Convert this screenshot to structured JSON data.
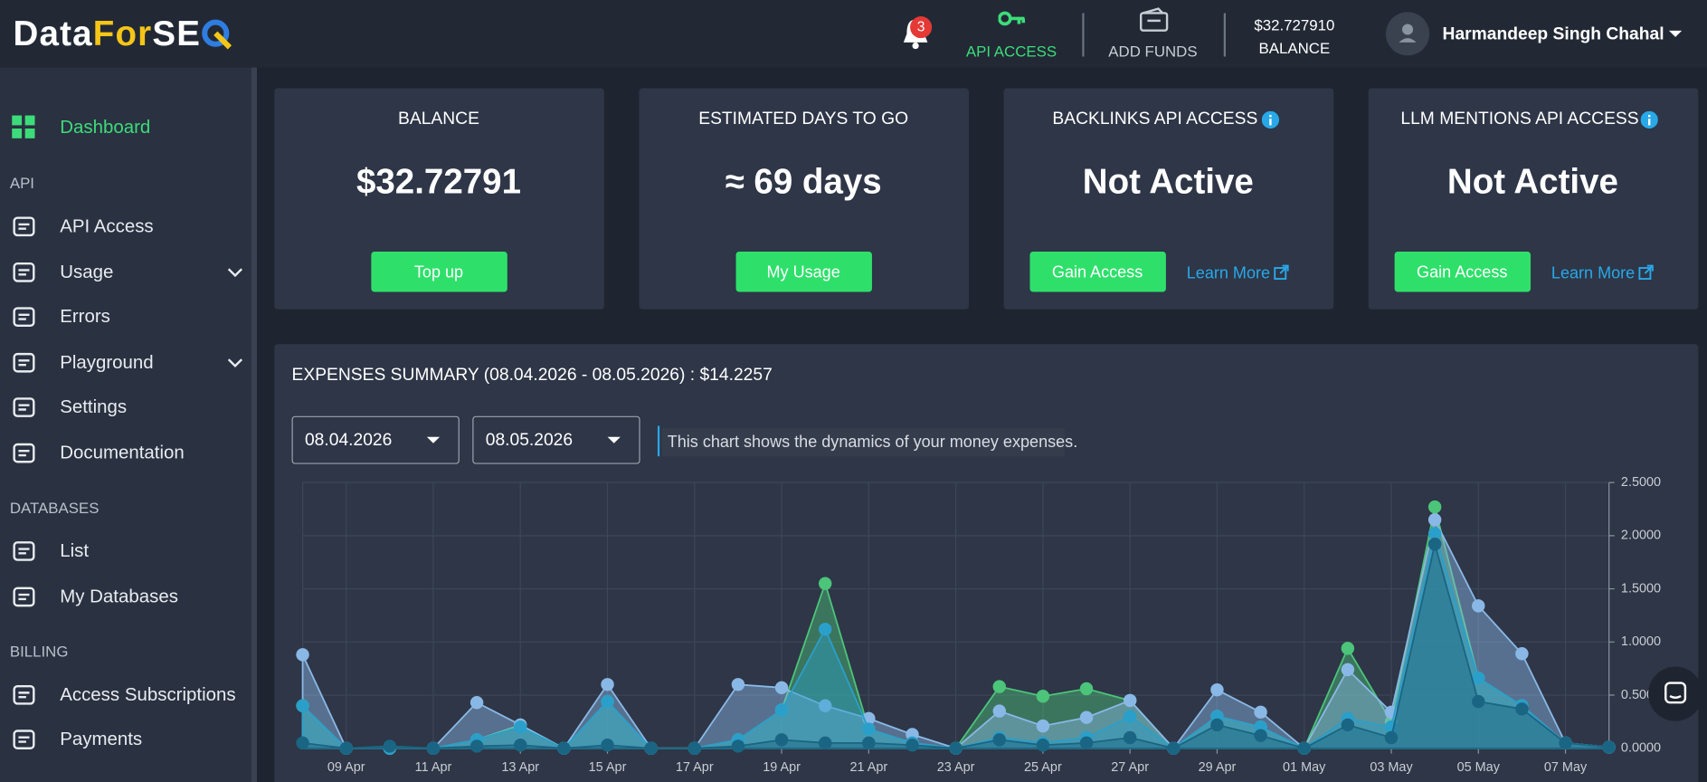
{
  "header": {
    "logo": [
      "Data",
      "For",
      "SE"
    ],
    "notifications": "3",
    "api_access": "API ACCESS",
    "add_funds": "ADD FUNDS",
    "balance_value": "$32.727910",
    "balance_label": "BALANCE",
    "user": "Harmandeep Singh Chahal"
  },
  "sidebar": {
    "dashboard": "Dashboard",
    "groups": [
      {
        "heading": "API",
        "items": [
          "API Access",
          "Usage",
          "Errors",
          "Playground",
          "Settings",
          "Documentation"
        ]
      },
      {
        "heading": "DATABASES",
        "items": [
          "List",
          "My Databases"
        ]
      },
      {
        "heading": "BILLING",
        "items": [
          "Access Subscriptions",
          "Payments"
        ]
      }
    ]
  },
  "cards": [
    {
      "title": "BALANCE",
      "value": "$32.72791",
      "button": "Top up"
    },
    {
      "title": "ESTIMATED DAYS TO GO",
      "value": "≈ 69 days",
      "button": "My Usage"
    },
    {
      "title": "BACKLINKS API ACCESS",
      "value": "Not Active",
      "button": "Gain Access",
      "link": "Learn More"
    },
    {
      "title": "LLM MENTIONS API ACCESS",
      "value": "Not Active",
      "button": "Gain Access",
      "link": "Learn More"
    }
  ],
  "expenses": {
    "title": "EXPENSES SUMMARY (08.04.2026 - 08.05.2026) : $14.2257",
    "date_from": "08.04.2026",
    "date_to": "08.05.2026",
    "note": "This chart shows the dynamics of your money expenses."
  },
  "chart_data": {
    "type": "area",
    "categories": [
      null,
      "09 Apr",
      null,
      "11 Apr",
      null,
      "13 Apr",
      null,
      "15 Apr",
      null,
      "17 Apr",
      null,
      "19 Apr",
      null,
      "21 Apr",
      null,
      "23 Apr",
      null,
      "25 Apr",
      null,
      "27 Apr",
      null,
      "29 Apr",
      null,
      "01 May",
      null,
      "03 May",
      null,
      "05 May",
      null,
      "07 May",
      null
    ],
    "series": [
      {
        "color": "#4cc47a",
        "values": [
          0.4,
          0,
          0,
          0,
          0.08,
          0.22,
          0,
          0.44,
          0,
          0,
          0.08,
          0.36,
          1.55,
          0.18,
          0.05,
          0,
          0.58,
          0.49,
          0.56,
          0.45,
          0,
          0.3,
          0.2,
          0,
          0.94,
          0.25,
          2.27,
          0.66,
          0.4,
          0.05,
          0.01
        ]
      },
      {
        "color": "#8ab8e6",
        "values": [
          0.88,
          0,
          0,
          0,
          0.43,
          0.22,
          0,
          0.6,
          0,
          0,
          0.6,
          0.57,
          0.4,
          0.28,
          0.13,
          0,
          0.35,
          0.21,
          0.29,
          0.45,
          0,
          0.55,
          0.34,
          0,
          0.74,
          0.34,
          2.15,
          1.34,
          0.89,
          0.05,
          0.01
        ]
      },
      {
        "color": "#2a9fc9",
        "values": [
          0.4,
          0,
          0,
          0,
          0.08,
          0.2,
          0,
          0.44,
          0,
          0,
          0.08,
          0.36,
          1.12,
          0.18,
          0.05,
          0,
          0.1,
          0.05,
          0.1,
          0.3,
          0,
          0.3,
          0.2,
          0,
          0.28,
          0.2,
          2.02,
          0.66,
          0.4,
          0.05,
          0.01
        ]
      },
      {
        "color": "#1a6583",
        "values": [
          0.05,
          0,
          0.02,
          0,
          0.02,
          0.03,
          0,
          0.03,
          0,
          0,
          0.02,
          0.08,
          0.05,
          0.05,
          0.03,
          0,
          0.08,
          0.03,
          0.05,
          0.1,
          0,
          0.22,
          0.12,
          0,
          0.22,
          0.1,
          1.92,
          0.44,
          0.37,
          0.05,
          0.01
        ]
      }
    ],
    "ylim": [
      0,
      2.5
    ],
    "yticks": [
      {
        "value": 0,
        "label": "0.0000"
      },
      {
        "value": 0.5,
        "label": "0.5000"
      },
      {
        "value": 1,
        "label": "1.0000"
      },
      {
        "value": 1.5,
        "label": "1.5000"
      },
      {
        "value": 2,
        "label": "2.0000"
      },
      {
        "value": 2.5,
        "label": "2.5000"
      }
    ],
    "grid": true
  }
}
